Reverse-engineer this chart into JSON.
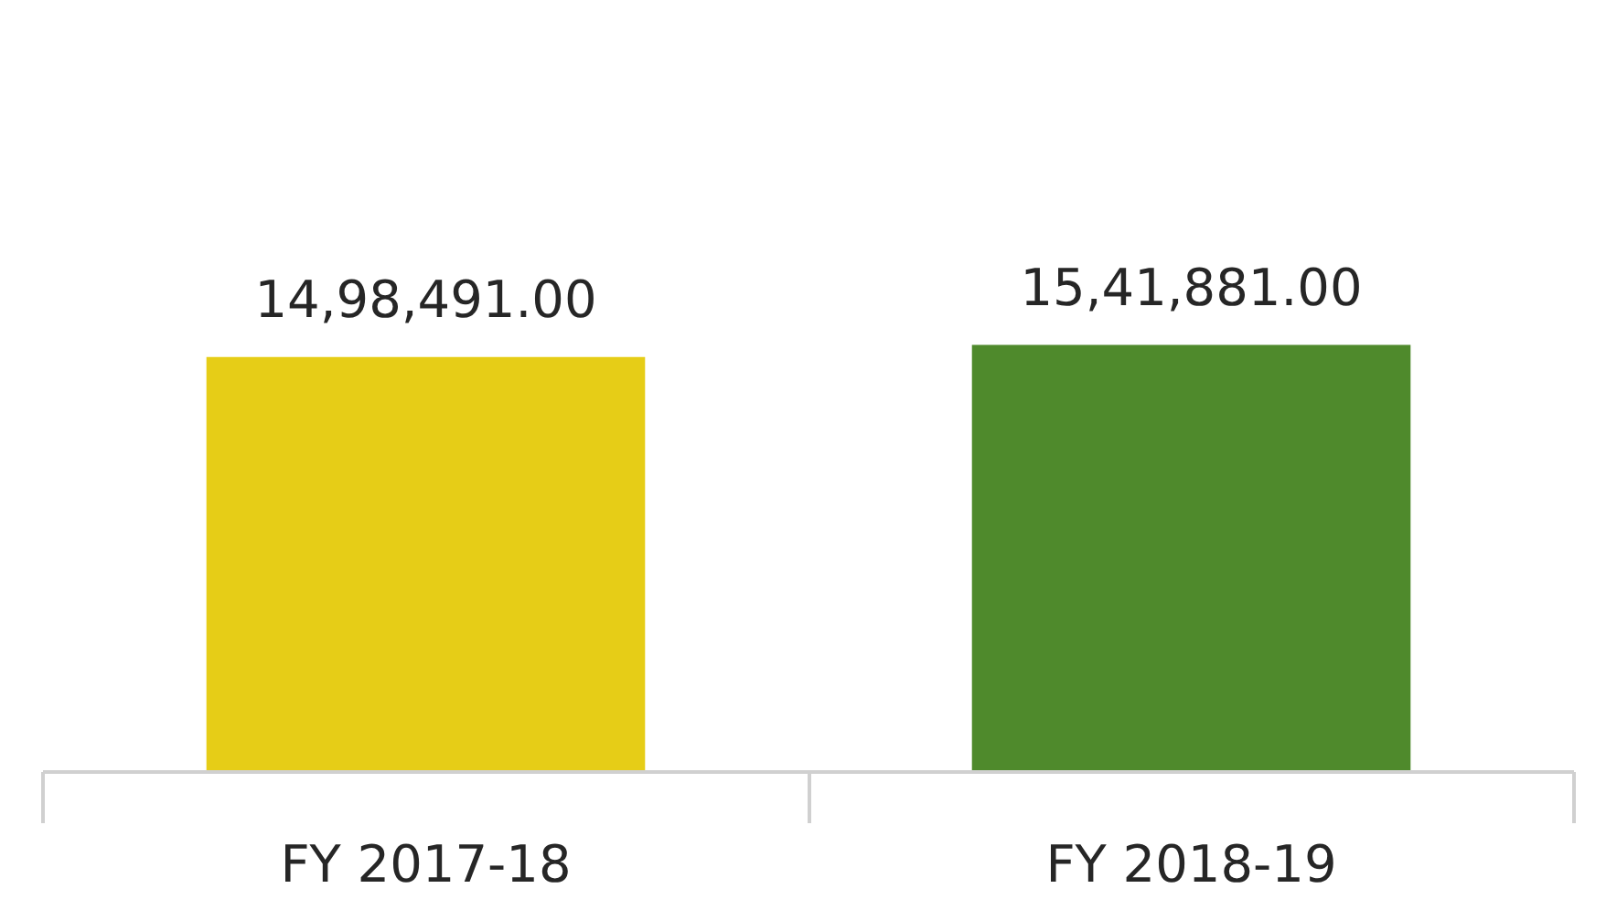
{
  "chart_data": {
    "type": "bar",
    "categories": [
      "FY 2017-18",
      "FY 2018-19"
    ],
    "values": [
      1498491.0,
      1541881.0
    ],
    "value_labels": [
      "14,98,491.00",
      "15,41,881.00"
    ],
    "colors": [
      "#e6cd17",
      "#4f8a2c"
    ],
    "tick_labels": "x",
    "grid": false
  }
}
